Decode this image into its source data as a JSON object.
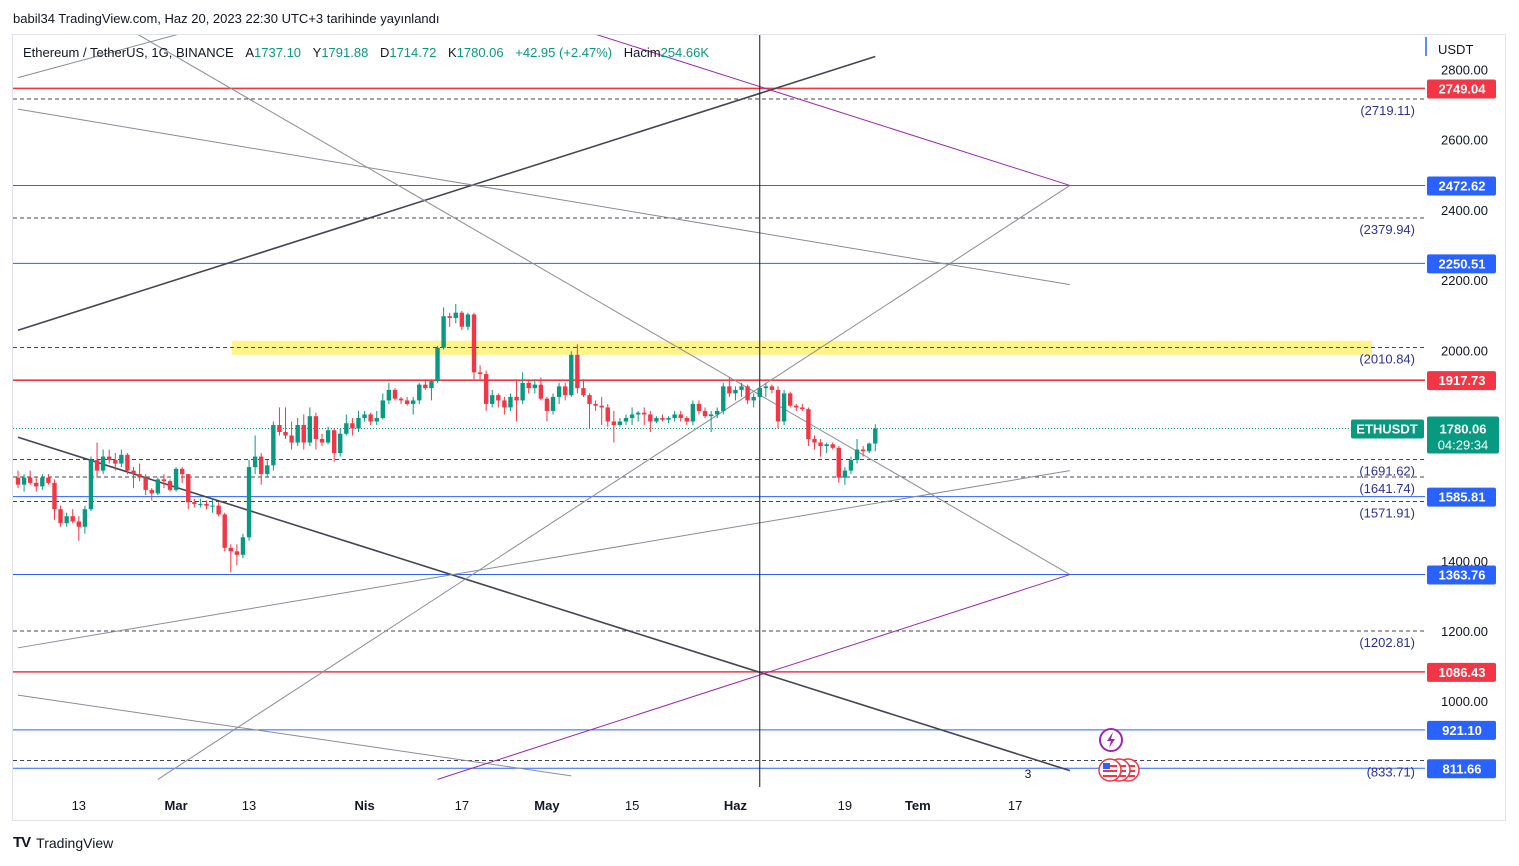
{
  "header": {
    "publisher": "babil34 TradingView.com, Haz 20, 2023 22:30 UTC+3 tarihinde yayınlandı"
  },
  "legend": {
    "symbol": "Ethereum / TetherUS, 1G, BINANCE",
    "open_label": "A",
    "open": "1737.10",
    "high_label": "Y",
    "high": "1791.88",
    "low_label": "D",
    "low": "1714.72",
    "close_label": "K",
    "close": "1780.06",
    "change": "+42.95 (+2.47%)",
    "volume_label": "Hacim",
    "volume": "254.66K"
  },
  "footer": {
    "brand": "TradingView"
  },
  "colors": {
    "up": "#089981",
    "down": "#f23645",
    "red_line": "#f23645",
    "blue_line": "#2962ff",
    "purple_line": "#9c27b0",
    "yellow_zone": "#ffeb3b"
  },
  "chart_data": {
    "type": "candlestick",
    "symbol": "ETHUSDT",
    "currency": "USDT",
    "ylim": [
      780,
      2830
    ],
    "y_ticks": [
      1000,
      1200,
      1400,
      2000,
      2200,
      2400,
      2600,
      2800
    ],
    "y_tick_labels": [
      "1000.00",
      "1200.00",
      "1400.00",
      "2000.00",
      "2200.00",
      "2400.00",
      "2600.00",
      "2800.00"
    ],
    "x_labels": [
      {
        "date": "2023-02-13",
        "label": "13"
      },
      {
        "date": "2023-03-01",
        "label": "Mar"
      },
      {
        "date": "2023-03-13",
        "label": "13"
      },
      {
        "date": "2023-04-01",
        "label": "Nis"
      },
      {
        "date": "2023-04-17",
        "label": "17"
      },
      {
        "date": "2023-05-01",
        "label": "May"
      },
      {
        "date": "2023-05-15",
        "label": "15"
      },
      {
        "date": "2023-06-01",
        "label": "Haz"
      },
      {
        "date": "2023-06-19",
        "label": "19"
      },
      {
        "date": "2023-07-01",
        "label": "Tem"
      },
      {
        "date": "2023-07-17",
        "label": "17"
      }
    ],
    "last_price": {
      "symbol_label": "ETHUSDT",
      "value": "1780.06",
      "countdown": "04:29:34"
    },
    "axis_badge": "3",
    "levels": [
      {
        "value": 2749.04,
        "label": "2749.04",
        "color": "red"
      },
      {
        "value": 2472.62,
        "label": "2472.62",
        "color": "blue"
      },
      {
        "value": 2250.51,
        "label": "2250.51",
        "color": "blue"
      },
      {
        "value": 1917.73,
        "label": "1917.73",
        "color": "red"
      },
      {
        "value": 1585.81,
        "label": "1585.81",
        "color": "blue"
      },
      {
        "value": 1363.76,
        "label": "1363.76",
        "color": "blue"
      },
      {
        "value": 1086.43,
        "label": "1086.43",
        "color": "red"
      },
      {
        "value": 921.1,
        "label": "921.10",
        "color": "blue"
      },
      {
        "value": 811.66,
        "label": "811.66",
        "color": "blue"
      }
    ],
    "dashed_levels": [
      {
        "value": 2719.11,
        "label": "(2719.11)"
      },
      {
        "value": 2379.94,
        "label": "(2379.94)"
      },
      {
        "value": 2010.84,
        "label": "(2010.84)"
      },
      {
        "value": 1691.62,
        "label": "(1691.62)"
      },
      {
        "value": 1641.74,
        "label": "(1641.74)"
      },
      {
        "value": 1571.91,
        "label": "(1571.91)"
      },
      {
        "value": 1202.81,
        "label": "(1202.81)"
      },
      {
        "value": 833.71,
        "label": "(833.71)"
      }
    ],
    "zone": {
      "low": 1990,
      "high": 2030
    },
    "trendlines": [
      {
        "from": [
          "2023-02-03",
          2060
        ],
        "to": [
          "2023-06-24",
          2840
        ],
        "color": "dark"
      },
      {
        "from": [
          "2023-02-03",
          2780
        ],
        "to": [
          "2023-06-24",
          3440
        ],
        "color": "gray"
      },
      {
        "from": [
          "2023-02-03",
          2690
        ],
        "to": [
          "2023-07-26",
          2190
        ],
        "color": "gray"
      },
      {
        "from": [
          "2023-02-03",
          1755
        ],
        "to": [
          "2023-07-26",
          805
        ],
        "color": "dark"
      },
      {
        "from": [
          "2023-02-03",
          1155
        ],
        "to": [
          "2023-07-26",
          1660
        ],
        "color": "gray"
      },
      {
        "from": [
          "2023-02-03",
          1020
        ],
        "to": [
          "2023-05-05",
          790
        ],
        "color": "gray"
      },
      {
        "from": [
          "2023-02-21",
          2920
        ],
        "to": [
          "2023-07-26",
          1363.76
        ],
        "color": "gray"
      },
      {
        "from": [
          "2023-02-26",
          780
        ],
        "to": [
          "2023-07-26",
          2472.62
        ],
        "color": "gray"
      },
      {
        "from": [
          "2023-04-13",
          780
        ],
        "to": [
          "2023-07-26",
          1363.76
        ],
        "color": "purple"
      },
      {
        "from": [
          "2023-05-06",
          2920
        ],
        "to": [
          "2023-07-26",
          2472.62
        ],
        "color": "purple"
      }
    ],
    "vertical_marker": "2023-06-05",
    "candles": [
      [
        "2023-02-03",
        1640,
        1660,
        1610,
        1620
      ],
      [
        "2023-02-04",
        1620,
        1650,
        1600,
        1640
      ],
      [
        "2023-02-05",
        1640,
        1660,
        1620,
        1625
      ],
      [
        "2023-02-06",
        1625,
        1640,
        1600,
        1615
      ],
      [
        "2023-02-07",
        1615,
        1650,
        1605,
        1640
      ],
      [
        "2023-02-08",
        1640,
        1650,
        1620,
        1625
      ],
      [
        "2023-02-09",
        1625,
        1635,
        1520,
        1550
      ],
      [
        "2023-02-10",
        1550,
        1560,
        1500,
        1510
      ],
      [
        "2023-02-11",
        1510,
        1540,
        1500,
        1530
      ],
      [
        "2023-02-12",
        1530,
        1550,
        1510,
        1515
      ],
      [
        "2023-02-13",
        1515,
        1530,
        1460,
        1500
      ],
      [
        "2023-02-14",
        1500,
        1560,
        1480,
        1550
      ],
      [
        "2023-02-15",
        1550,
        1700,
        1545,
        1690
      ],
      [
        "2023-02-16",
        1690,
        1740,
        1640,
        1660
      ],
      [
        "2023-02-17",
        1660,
        1720,
        1650,
        1700
      ],
      [
        "2023-02-18",
        1700,
        1720,
        1680,
        1690
      ],
      [
        "2023-02-19",
        1690,
        1710,
        1660,
        1680
      ],
      [
        "2023-02-20",
        1680,
        1720,
        1670,
        1705
      ],
      [
        "2023-02-21",
        1705,
        1710,
        1650,
        1660
      ],
      [
        "2023-02-22",
        1660,
        1670,
        1610,
        1650
      ],
      [
        "2023-02-23",
        1650,
        1680,
        1630,
        1640
      ],
      [
        "2023-02-24",
        1640,
        1650,
        1590,
        1605
      ],
      [
        "2023-02-25",
        1605,
        1610,
        1575,
        1595
      ],
      [
        "2023-02-26",
        1595,
        1640,
        1590,
        1635
      ],
      [
        "2023-02-27",
        1635,
        1650,
        1610,
        1630
      ],
      [
        "2023-02-28",
        1630,
        1635,
        1600,
        1605
      ],
      [
        "2023-03-01",
        1605,
        1670,
        1600,
        1665
      ],
      [
        "2023-03-02",
        1665,
        1670,
        1625,
        1650
      ],
      [
        "2023-03-03",
        1650,
        1650,
        1550,
        1570
      ],
      [
        "2023-03-04",
        1570,
        1580,
        1555,
        1565
      ],
      [
        "2023-03-05",
        1565,
        1580,
        1555,
        1565
      ],
      [
        "2023-03-06",
        1565,
        1575,
        1550,
        1560
      ],
      [
        "2023-03-07",
        1560,
        1580,
        1540,
        1560
      ],
      [
        "2023-03-08",
        1560,
        1570,
        1530,
        1535
      ],
      [
        "2023-03-09",
        1535,
        1540,
        1430,
        1440
      ],
      [
        "2023-03-10",
        1440,
        1450,
        1370,
        1430
      ],
      [
        "2023-03-11",
        1430,
        1450,
        1390,
        1420
      ],
      [
        "2023-03-12",
        1420,
        1480,
        1410,
        1470
      ],
      [
        "2023-03-13",
        1470,
        1690,
        1460,
        1670
      ],
      [
        "2023-03-14",
        1670,
        1760,
        1650,
        1700
      ],
      [
        "2023-03-15",
        1700,
        1710,
        1620,
        1650
      ],
      [
        "2023-03-16",
        1650,
        1690,
        1640,
        1675
      ],
      [
        "2023-03-17",
        1675,
        1800,
        1660,
        1790
      ],
      [
        "2023-03-18",
        1790,
        1840,
        1760,
        1770
      ],
      [
        "2023-03-19",
        1770,
        1840,
        1750,
        1760
      ],
      [
        "2023-03-20",
        1760,
        1800,
        1720,
        1740
      ],
      [
        "2023-03-21",
        1740,
        1810,
        1730,
        1790
      ],
      [
        "2023-03-22",
        1790,
        1820,
        1720,
        1740
      ],
      [
        "2023-03-23",
        1740,
        1840,
        1730,
        1815
      ],
      [
        "2023-03-24",
        1815,
        1825,
        1720,
        1750
      ],
      [
        "2023-03-25",
        1750,
        1765,
        1730,
        1740
      ],
      [
        "2023-03-26",
        1740,
        1785,
        1735,
        1775
      ],
      [
        "2023-03-27",
        1775,
        1780,
        1685,
        1710
      ],
      [
        "2023-03-28",
        1710,
        1780,
        1700,
        1765
      ],
      [
        "2023-03-29",
        1765,
        1820,
        1760,
        1795
      ],
      [
        "2023-03-30",
        1795,
        1810,
        1760,
        1780
      ],
      [
        "2023-03-31",
        1780,
        1830,
        1770,
        1810
      ],
      [
        "2023-04-01",
        1810,
        1830,
        1800,
        1820
      ],
      [
        "2023-04-02",
        1820,
        1825,
        1790,
        1800
      ],
      [
        "2023-04-03",
        1800,
        1830,
        1790,
        1810
      ],
      [
        "2023-04-04",
        1810,
        1880,
        1805,
        1860
      ],
      [
        "2023-04-05",
        1860,
        1910,
        1850,
        1890
      ],
      [
        "2023-04-06",
        1890,
        1895,
        1860,
        1865
      ],
      [
        "2023-04-07",
        1865,
        1870,
        1850,
        1860
      ],
      [
        "2023-04-08",
        1860,
        1870,
        1845,
        1850
      ],
      [
        "2023-04-09",
        1850,
        1870,
        1820,
        1860
      ],
      [
        "2023-04-10",
        1860,
        1910,
        1850,
        1905
      ],
      [
        "2023-04-11",
        1905,
        1920,
        1890,
        1895
      ],
      [
        "2023-04-12",
        1895,
        1920,
        1860,
        1915
      ],
      [
        "2023-04-13",
        1915,
        2015,
        1910,
        2010
      ],
      [
        "2023-04-14",
        2010,
        2125,
        2005,
        2100
      ],
      [
        "2023-04-15",
        2100,
        2110,
        2070,
        2095
      ],
      [
        "2023-04-16",
        2095,
        2135,
        2080,
        2110
      ],
      [
        "2023-04-17",
        2110,
        2115,
        2060,
        2070
      ],
      [
        "2023-04-18",
        2070,
        2110,
        2060,
        2105
      ],
      [
        "2023-04-19",
        2105,
        2110,
        1920,
        1940
      ],
      [
        "2023-04-20",
        1940,
        1960,
        1920,
        1935
      ],
      [
        "2023-04-21",
        1935,
        1945,
        1830,
        1850
      ],
      [
        "2023-04-22",
        1850,
        1890,
        1840,
        1875
      ],
      [
        "2023-04-23",
        1875,
        1880,
        1840,
        1860
      ],
      [
        "2023-04-24",
        1860,
        1870,
        1820,
        1840
      ],
      [
        "2023-04-25",
        1840,
        1880,
        1830,
        1870
      ],
      [
        "2023-04-26",
        1870,
        1920,
        1800,
        1860
      ],
      [
        "2023-04-27",
        1860,
        1940,
        1850,
        1910
      ],
      [
        "2023-04-28",
        1910,
        1920,
        1880,
        1895
      ],
      [
        "2023-04-29",
        1895,
        1920,
        1880,
        1905
      ],
      [
        "2023-04-30",
        1905,
        1925,
        1860,
        1865
      ],
      [
        "2023-05-01",
        1865,
        1870,
        1800,
        1830
      ],
      [
        "2023-05-02",
        1830,
        1880,
        1820,
        1870
      ],
      [
        "2023-05-03",
        1870,
        1910,
        1850,
        1900
      ],
      [
        "2023-05-04",
        1900,
        1910,
        1860,
        1875
      ],
      [
        "2023-05-05",
        1875,
        2000,
        1870,
        1990
      ],
      [
        "2023-05-06",
        1990,
        2020,
        1880,
        1895
      ],
      [
        "2023-05-07",
        1895,
        1920,
        1870,
        1875
      ],
      [
        "2023-05-08",
        1875,
        1880,
        1780,
        1850
      ],
      [
        "2023-05-09",
        1850,
        1860,
        1830,
        1845
      ],
      [
        "2023-05-10",
        1845,
        1870,
        1790,
        1840
      ],
      [
        "2023-05-11",
        1840,
        1850,
        1785,
        1800
      ],
      [
        "2023-05-12",
        1800,
        1830,
        1740,
        1790
      ],
      [
        "2023-05-13",
        1790,
        1810,
        1785,
        1800
      ],
      [
        "2023-05-14",
        1800,
        1820,
        1790,
        1810
      ],
      [
        "2023-05-15",
        1810,
        1840,
        1790,
        1820
      ],
      [
        "2023-05-16",
        1820,
        1830,
        1800,
        1825
      ],
      [
        "2023-05-17",
        1825,
        1840,
        1790,
        1820
      ],
      [
        "2023-05-18",
        1820,
        1830,
        1770,
        1800
      ],
      [
        "2023-05-19",
        1800,
        1815,
        1795,
        1810
      ],
      [
        "2023-05-20",
        1810,
        1820,
        1800,
        1805
      ],
      [
        "2023-05-21",
        1805,
        1815,
        1795,
        1810
      ],
      [
        "2023-05-22",
        1810,
        1830,
        1800,
        1820
      ],
      [
        "2023-05-23",
        1820,
        1830,
        1800,
        1810
      ],
      [
        "2023-05-24",
        1810,
        1815,
        1790,
        1800
      ],
      [
        "2023-05-25",
        1800,
        1860,
        1790,
        1850
      ],
      [
        "2023-05-26",
        1850,
        1860,
        1820,
        1830
      ],
      [
        "2023-05-27",
        1830,
        1840,
        1810,
        1815
      ],
      [
        "2023-05-28",
        1815,
        1830,
        1770,
        1820
      ],
      [
        "2023-05-29",
        1820,
        1840,
        1810,
        1830
      ],
      [
        "2023-05-30",
        1830,
        1910,
        1820,
        1900
      ],
      [
        "2023-05-31",
        1900,
        1925,
        1870,
        1880
      ],
      [
        "2023-06-01",
        1880,
        1900,
        1860,
        1890
      ],
      [
        "2023-06-02",
        1890,
        1910,
        1870,
        1900
      ],
      [
        "2023-06-03",
        1900,
        1905,
        1850,
        1860
      ],
      [
        "2023-06-04",
        1860,
        1880,
        1840,
        1870
      ],
      [
        "2023-06-05",
        1870,
        1900,
        1860,
        1895
      ],
      [
        "2023-06-06",
        1895,
        1910,
        1870,
        1900
      ],
      [
        "2023-06-07",
        1900,
        1905,
        1880,
        1890
      ],
      [
        "2023-06-08",
        1890,
        1900,
        1780,
        1800
      ],
      [
        "2023-06-09",
        1800,
        1890,
        1790,
        1880
      ],
      [
        "2023-06-10",
        1880,
        1885,
        1840,
        1845
      ],
      [
        "2023-06-11",
        1845,
        1850,
        1830,
        1840
      ],
      [
        "2023-06-12",
        1840,
        1850,
        1830,
        1835
      ],
      [
        "2023-06-13",
        1835,
        1840,
        1730,
        1750
      ],
      [
        "2023-06-14",
        1750,
        1760,
        1720,
        1740
      ],
      [
        "2023-06-15",
        1740,
        1750,
        1700,
        1730
      ],
      [
        "2023-06-16",
        1730,
        1740,
        1710,
        1735
      ],
      [
        "2023-06-17",
        1735,
        1740,
        1720,
        1725
      ],
      [
        "2023-06-18",
        1725,
        1730,
        1625,
        1640
      ],
      [
        "2023-06-19",
        1640,
        1670,
        1620,
        1660
      ],
      [
        "2023-06-20",
        1660,
        1700,
        1650,
        1690
      ],
      [
        "2023-06-21",
        1690,
        1750,
        1680,
        1720
      ],
      [
        "2023-06-22",
        1720,
        1730,
        1700,
        1715
      ],
      [
        "2023-06-23",
        1715,
        1740,
        1710,
        1737.1
      ],
      [
        "2023-06-24",
        1737.1,
        1791.88,
        1714.72,
        1780.06
      ]
    ]
  }
}
